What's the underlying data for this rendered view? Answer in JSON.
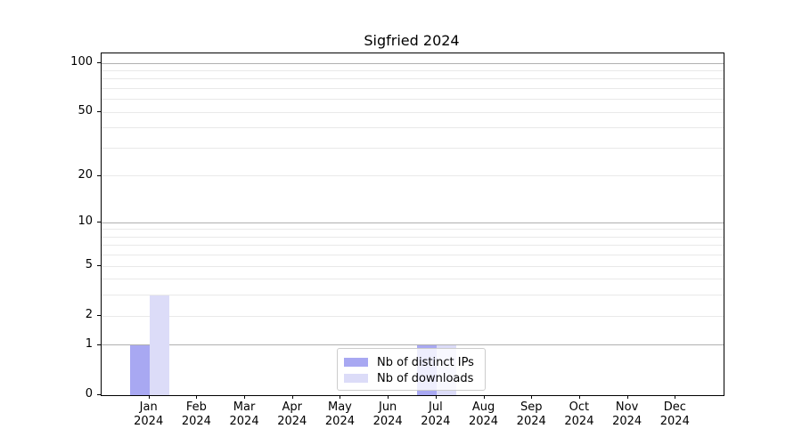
{
  "chart_data": {
    "type": "bar",
    "title": "Sigfried 2024",
    "categories": [
      "Jan 2024",
      "Feb 2024",
      "Mar 2024",
      "Apr 2024",
      "May 2024",
      "Jun 2024",
      "Jul 2024",
      "Aug 2024",
      "Sep 2024",
      "Oct 2024",
      "Nov 2024",
      "Dec 2024"
    ],
    "series": [
      {
        "name": "Nb of distinct IPs",
        "color": "#a8a8f2",
        "values": [
          1,
          0,
          0,
          0,
          0,
          0,
          1,
          0,
          0,
          0,
          0,
          0
        ]
      },
      {
        "name": "Nb of downloads",
        "color": "#dcdcf8",
        "values": [
          3,
          0,
          0,
          0,
          0,
          0,
          1,
          0,
          0,
          0,
          0,
          0
        ]
      }
    ],
    "xlabel": "",
    "ylabel": "",
    "y_axis": {
      "scale": "log1p",
      "ylim": [
        0,
        115
      ],
      "tick_values": [
        0,
        1,
        2,
        5,
        10,
        20,
        50,
        100
      ],
      "tick_labels": [
        "0",
        "1",
        "2",
        "5",
        "10",
        "20",
        "50",
        "100"
      ],
      "major_gridlines": [
        1,
        10,
        100
      ],
      "minor_gridlines": [
        2,
        3,
        4,
        5,
        6,
        7,
        8,
        9,
        20,
        30,
        40,
        50,
        60,
        70,
        80,
        90
      ]
    },
    "grid": true,
    "legend": {
      "position": "lower center",
      "entries": [
        "Nb of distinct IPs",
        "Nb of downloads"
      ]
    }
  },
  "colors": {
    "series_ips": "#a8a8f2",
    "series_downloads": "#dcdcf8",
    "major_grid": "#b0b0b0",
    "minor_grid": "#e9e9e9",
    "spine": "#000000",
    "legend_border": "#cccccc",
    "legend_background": "rgba(255,255,255,0.8)",
    "text": "#000000"
  }
}
